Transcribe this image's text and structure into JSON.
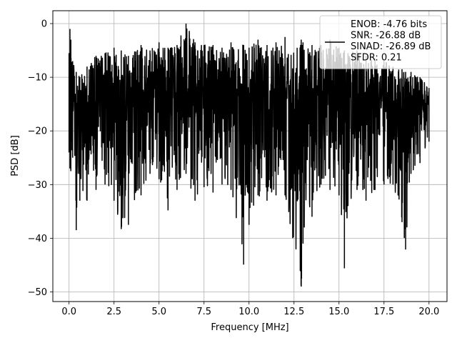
{
  "chart_data": {
    "type": "line",
    "title": "",
    "xlabel": "Frequency [MHz]",
    "ylabel": "PSD [dB]",
    "xlim": [
      -0.9,
      21.0
    ],
    "ylim": [
      -51.8,
      2.4
    ],
    "xticks": [
      0.0,
      2.5,
      5.0,
      7.5,
      10.0,
      12.5,
      15.0,
      17.5,
      20.0
    ],
    "xtick_labels": [
      "0.0",
      "2.5",
      "5.0",
      "7.5",
      "10.0",
      "12.5",
      "15.0",
      "17.5",
      "20.0"
    ],
    "yticks": [
      0,
      -10,
      -20,
      -30,
      -40,
      -50
    ],
    "ytick_labels": [
      "0",
      "−10",
      "−20",
      "−30",
      "−40",
      "−50"
    ],
    "grid": true,
    "legend_position": "top-right",
    "series": [
      {
        "name": "ENOB: -4.76 bits\nSNR: -26.88 dB\nSINAD: -26.89 dB\nSFDR: 0.21",
        "color": "#000000",
        "x_range": [
          0.0,
          20.0
        ],
        "description_points": {
          "x": [
            0.0,
            0.05,
            0.1,
            0.2,
            0.4,
            0.6,
            1.0,
            1.5,
            2.0,
            2.5,
            2.9,
            3.3,
            4.0,
            4.5,
            5.0,
            5.5,
            6.0,
            6.5,
            7.0,
            7.5,
            8.0,
            8.5,
            9.0,
            9.7,
            10.0,
            10.5,
            11.0,
            11.5,
            12.0,
            12.9,
            13.0,
            13.5,
            14.0,
            14.5,
            15.0,
            15.3,
            15.5,
            16.0,
            16.5,
            17.0,
            17.5,
            18.0,
            18.5,
            18.7,
            19.0,
            19.5,
            20.0
          ],
          "y_upper": [
            -5.5,
            -1.0,
            -3.0,
            -7.0,
            -9.0,
            -10.0,
            -8.0,
            -6.0,
            -5.5,
            -4.5,
            -5.0,
            -6.0,
            -4.0,
            -5.0,
            -3.5,
            -4.5,
            -4.0,
            0.0,
            -3.5,
            -4.0,
            -4.0,
            -4.5,
            -3.5,
            -4.0,
            -4.5,
            -3.0,
            -4.0,
            -3.5,
            -2.5,
            -3.0,
            -3.5,
            -4.0,
            -4.0,
            -3.0,
            -4.5,
            -5.0,
            -5.5,
            -5.0,
            -6.0,
            -6.5,
            -7.0,
            -8.0,
            -8.5,
            -9.0,
            -9.0,
            -10.0,
            -12.0
          ],
          "y_lower": [
            -24.0,
            -27.0,
            -27.5,
            -25.0,
            -38.5,
            -33.0,
            -33.0,
            -31.0,
            -30.0,
            -33.0,
            -38.3,
            -37.5,
            -32.0,
            -28.0,
            -29.0,
            -34.8,
            -31.0,
            -28.0,
            -33.0,
            -30.5,
            -31.5,
            -30.0,
            -31.0,
            -44.9,
            -37.5,
            -32.0,
            -33.0,
            -32.0,
            -32.0,
            -49.0,
            -41.0,
            -36.0,
            -30.0,
            -31.0,
            -32.0,
            -45.6,
            -34.0,
            -31.0,
            -33.0,
            -31.0,
            -30.0,
            -30.0,
            -37.0,
            -42.1,
            -28.0,
            -26.0,
            -22.0
          ]
        }
      }
    ]
  }
}
